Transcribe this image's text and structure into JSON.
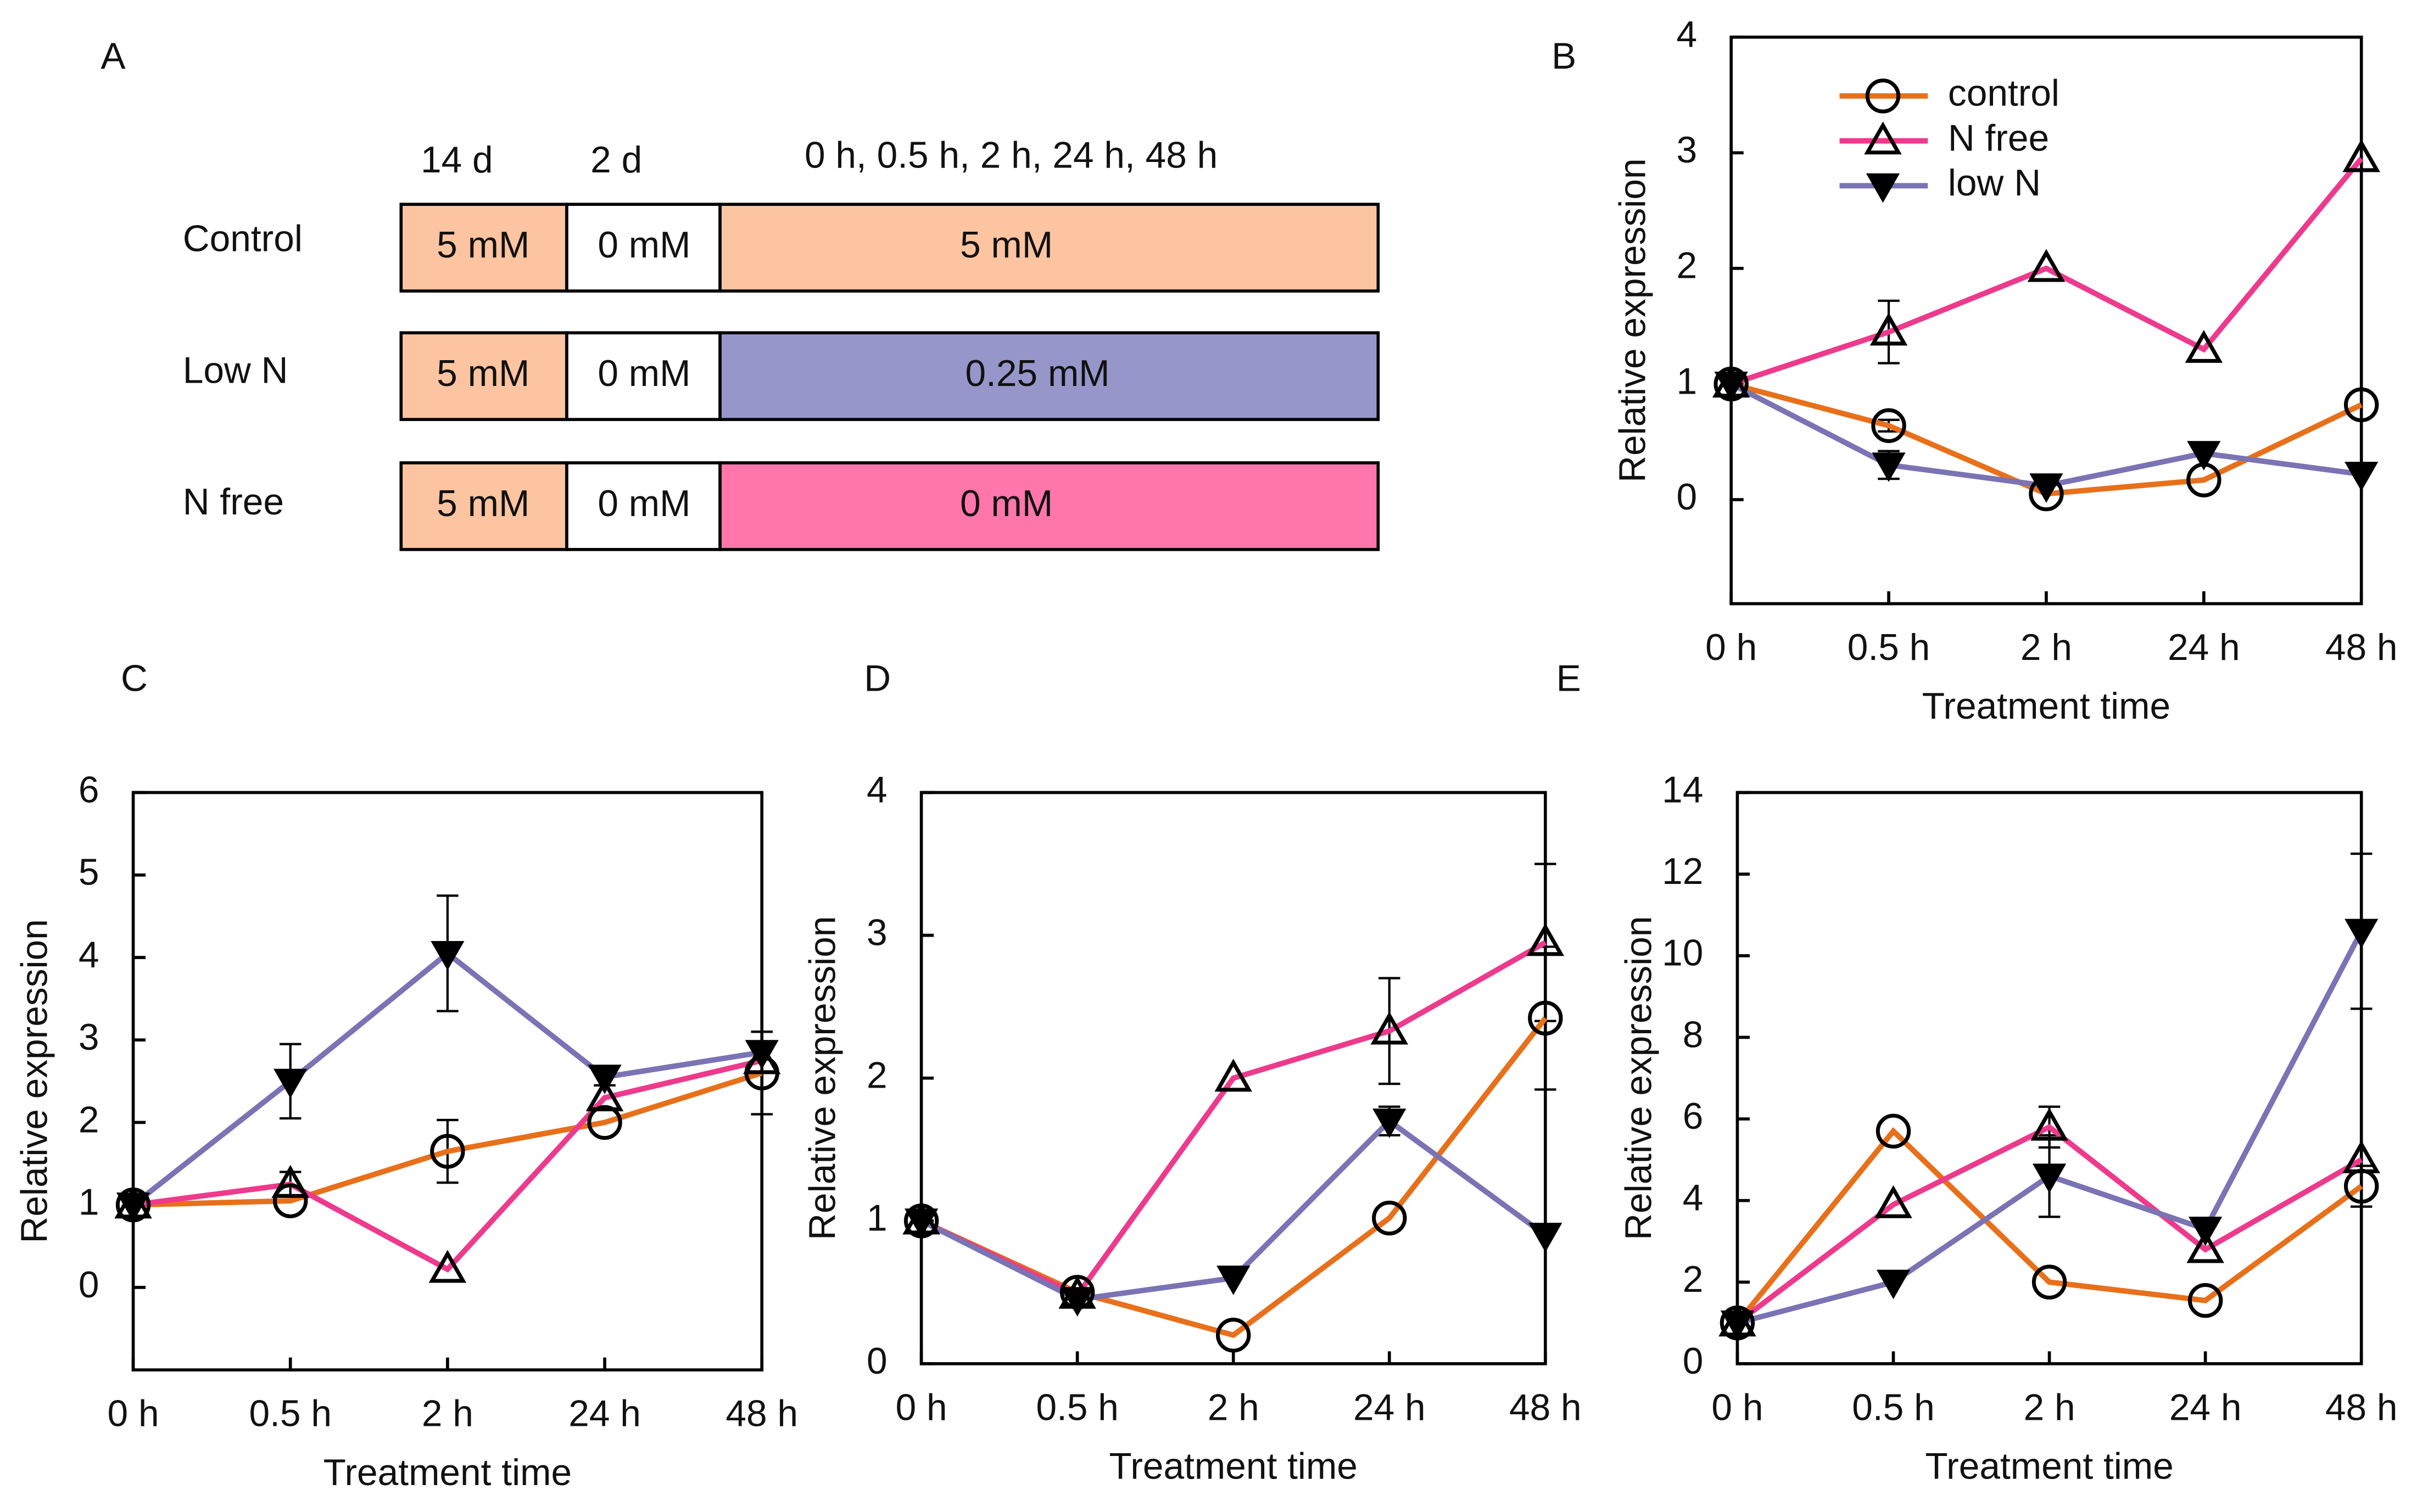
{
  "diagram": {
    "panel": "A",
    "headers": [
      "14 d",
      "2 d",
      "0 h, 0.5 h, 2 h, 24 h, 48 h"
    ],
    "rows": [
      {
        "label": "Control",
        "cells": [
          "5 mM",
          "0 mM",
          "5 mM"
        ]
      },
      {
        "label": "Low N",
        "cells": [
          "5 mM",
          "0 mM",
          "0.25 mM"
        ]
      },
      {
        "label": "N free",
        "cells": [
          "5 mM",
          "0 mM",
          "0 mM"
        ]
      }
    ]
  },
  "chart_data": [
    {
      "type": "line",
      "panel": "B",
      "xlabel": "Treatment time",
      "ylabel": "Relative expression",
      "legend": true,
      "categories": [
        "0 h",
        "0.5 h",
        "2 h",
        "24 h",
        "48 h"
      ],
      "ylim": [
        -0.9,
        4
      ],
      "yticks": [
        0,
        1,
        2,
        3,
        4
      ],
      "series": [
        {
          "name": "control",
          "color": "#e8701a",
          "marker": "circle",
          "values": [
            1,
            0.64,
            0.05,
            0.17,
            0.82
          ],
          "errors": [
            null,
            0.05,
            null,
            null,
            null
          ]
        },
        {
          "name": "N free",
          "color": "#ee3a8c",
          "marker": "triangle-up",
          "values": [
            1,
            1.45,
            2.0,
            1.3,
            2.95
          ],
          "errors": [
            null,
            0.27,
            null,
            null,
            null
          ]
        },
        {
          "name": "low N",
          "color": "#7a73b4",
          "marker": "triangle-down",
          "values": [
            1,
            0.3,
            0.12,
            0.4,
            0.22
          ],
          "errors": [
            null,
            0.12,
            null,
            null,
            null
          ]
        }
      ]
    },
    {
      "type": "line",
      "panel": "C",
      "xlabel": "Treatment time",
      "ylabel": "Relative expression",
      "legend": false,
      "categories": [
        "0 h",
        "0.5 h",
        "2 h",
        "24 h",
        "48 h"
      ],
      "ylim": [
        -1,
        6
      ],
      "yticks": [
        0,
        1,
        2,
        3,
        4,
        5,
        6
      ],
      "series": [
        {
          "color": "#e8701a",
          "marker": "circle",
          "values": [
            1,
            1.05,
            1.65,
            2.0,
            2.6
          ],
          "errors": [
            null,
            null,
            0.38,
            null,
            0.5
          ]
        },
        {
          "color": "#ee3a8c",
          "marker": "triangle-up",
          "values": [
            1,
            1.25,
            0.22,
            2.3,
            2.75
          ],
          "errors": [
            null,
            0.15,
            null,
            null,
            null
          ]
        },
        {
          "color": "#7a73b4",
          "marker": "triangle-down",
          "values": [
            1,
            2.5,
            4.05,
            2.55,
            2.85
          ],
          "errors": [
            null,
            0.45,
            0.7,
            0.1,
            0.25
          ]
        }
      ]
    },
    {
      "type": "line",
      "panel": "D",
      "xlabel": "Treatment time",
      "ylabel": "Relative expression",
      "legend": false,
      "categories": [
        "0 h",
        "0.5 h",
        "2 h",
        "24 h",
        "48 h"
      ],
      "ylim": [
        0,
        4
      ],
      "yticks": [
        0,
        1,
        2,
        3,
        4
      ],
      "series": [
        {
          "color": "#e8701a",
          "marker": "circle",
          "values": [
            1,
            0.5,
            0.2,
            1.02,
            2.42
          ],
          "errors": [
            null,
            null,
            null,
            null,
            0.5
          ]
        },
        {
          "color": "#ee3a8c",
          "marker": "triangle-up",
          "values": [
            1,
            0.48,
            2.0,
            2.33,
            2.95
          ],
          "errors": [
            null,
            null,
            null,
            0.37,
            0.55
          ]
        },
        {
          "color": "#7a73b4",
          "marker": "triangle-down",
          "values": [
            1,
            0.45,
            0.6,
            1.7,
            0.9
          ],
          "errors": [
            null,
            null,
            null,
            0.1,
            null
          ]
        }
      ]
    },
    {
      "type": "line",
      "panel": "E",
      "xlabel": "Treatment time",
      "ylabel": "Relative expression",
      "legend": false,
      "categories": [
        "0 h",
        "0.5 h",
        "2 h",
        "24 h",
        "48 h"
      ],
      "ylim": [
        0,
        14
      ],
      "yticks": [
        0,
        2,
        4,
        6,
        8,
        10,
        12,
        14
      ],
      "series": [
        {
          "color": "#e8701a",
          "marker": "circle",
          "values": [
            1,
            5.7,
            2.0,
            1.55,
            4.35
          ],
          "errors": [
            null,
            null,
            null,
            null,
            0.5
          ]
        },
        {
          "color": "#ee3a8c",
          "marker": "triangle-up",
          "values": [
            1,
            3.9,
            5.8,
            2.8,
            5.0
          ],
          "errors": [
            null,
            null,
            0.5,
            null,
            null
          ]
        },
        {
          "color": "#7a73b4",
          "marker": "triangle-down",
          "values": [
            1,
            2.0,
            4.6,
            3.3,
            10.6
          ],
          "errors": [
            null,
            null,
            1.0,
            null,
            1.9
          ]
        }
      ]
    }
  ]
}
